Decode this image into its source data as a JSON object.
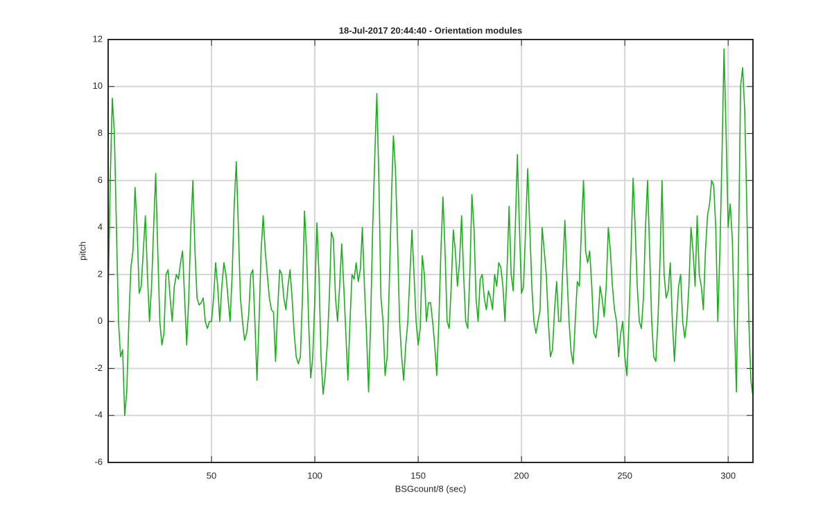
{
  "chart_data": {
    "type": "line",
    "title": "18-Jul-2017 20:44:40 - Orientation modules",
    "xlabel": "BSGcount/8 (sec)",
    "ylabel": "pitch",
    "xlim": [
      0,
      312
    ],
    "ylim": [
      -6,
      12
    ],
    "xticks": [
      50,
      100,
      150,
      200,
      250,
      300
    ],
    "yticks": [
      -6,
      -4,
      -2,
      0,
      2,
      4,
      6,
      8,
      10,
      12
    ],
    "grid": true,
    "x": [
      0,
      1,
      2,
      3,
      4,
      5,
      6,
      7,
      8,
      9,
      10,
      11,
      12,
      13,
      14,
      15,
      16,
      17,
      18,
      19,
      20,
      21,
      22,
      23,
      24,
      25,
      26,
      27,
      28,
      29,
      30,
      31,
      32,
      33,
      34,
      35,
      36,
      37,
      38,
      39,
      40,
      41,
      42,
      43,
      44,
      45,
      46,
      47,
      48,
      49,
      50,
      51,
      52,
      53,
      54,
      55,
      56,
      57,
      58,
      59,
      60,
      61,
      62,
      63,
      64,
      65,
      66,
      67,
      68,
      69,
      70,
      71,
      72,
      73,
      74,
      75,
      76,
      77,
      78,
      79,
      80,
      81,
      82,
      83,
      84,
      85,
      86,
      87,
      88,
      89,
      90,
      91,
      92,
      93,
      94,
      95,
      96,
      97,
      98,
      99,
      100,
      101,
      102,
      103,
      104,
      105,
      106,
      107,
      108,
      109,
      110,
      111,
      112,
      113,
      114,
      115,
      116,
      117,
      118,
      119,
      120,
      121,
      122,
      123,
      124,
      125,
      126,
      127,
      128,
      129,
      130,
      131,
      132,
      133,
      134,
      135,
      136,
      137,
      138,
      139,
      140,
      141,
      142,
      143,
      144,
      145,
      146,
      147,
      148,
      149,
      150,
      151,
      152,
      153,
      154,
      155,
      156,
      157,
      158,
      159,
      160,
      161,
      162,
      163,
      164,
      165,
      166,
      167,
      168,
      169,
      170,
      171,
      172,
      173,
      174,
      175,
      176,
      177,
      178,
      179,
      180,
      181,
      182,
      183,
      184,
      185,
      186,
      187,
      188,
      189,
      190,
      191,
      192,
      193,
      194,
      195,
      196,
      197,
      198,
      199,
      200,
      201,
      202,
      203,
      204,
      205,
      206,
      207,
      208,
      209,
      210,
      211,
      212,
      213,
      214,
      215,
      216,
      217,
      218,
      219,
      220,
      221,
      222,
      223,
      224,
      225,
      226,
      227,
      228,
      229,
      230,
      231,
      232,
      233,
      234,
      235,
      236,
      237,
      238,
      239,
      240,
      241,
      242,
      243,
      244,
      245,
      246,
      247,
      248,
      249,
      250,
      251,
      252,
      253,
      254,
      255,
      256,
      257,
      258,
      259,
      260,
      261,
      262,
      263,
      264,
      265,
      266,
      267,
      268,
      269,
      270,
      271,
      272,
      273,
      274,
      275,
      276,
      277,
      278,
      279,
      280,
      281,
      282,
      283,
      284,
      285,
      286,
      287,
      288,
      289,
      290,
      291,
      292,
      293,
      294,
      295,
      296,
      297,
      298,
      299,
      300,
      301,
      302,
      303,
      304,
      305,
      306,
      307,
      308,
      309,
      310,
      311,
      312
    ],
    "series": [
      {
        "color": "#1aaf1a",
        "values": [
          1,
          6,
          9.5,
          8,
          4,
          0,
          -1.5,
          -1.2,
          -4,
          -3,
          0,
          2.3,
          3,
          5.7,
          4,
          1.2,
          1.5,
          3,
          4.5,
          2,
          0,
          1.5,
          4,
          6.3,
          3,
          0,
          -1,
          -0.5,
          2,
          2.2,
          1,
          0,
          1.5,
          2,
          1.8,
          2.5,
          3,
          1,
          -1,
          1,
          4,
          6,
          3,
          1,
          0.7,
          0.8,
          1,
          0,
          -0.3,
          0,
          0,
          1,
          2.5,
          1.5,
          0,
          1.5,
          2.5,
          2,
          1,
          0,
          2,
          5,
          6.8,
          4,
          1,
          0,
          -0.8,
          -0.5,
          0.3,
          2,
          2.2,
          0,
          -2.5,
          0,
          3,
          4.5,
          3,
          2,
          1,
          0.5,
          0.4,
          -1.7,
          0.5,
          2.2,
          2,
          1,
          0.5,
          1.5,
          2.2,
          1,
          -0.5,
          -1.5,
          -1.8,
          -1.5,
          1,
          4.7,
          3,
          0,
          -2.4,
          -1.5,
          1,
          4.2,
          2,
          -1.5,
          -3.1,
          -2.3,
          -1,
          1,
          3.8,
          3.5,
          1,
          0,
          1.5,
          3.3,
          1.5,
          -0.5,
          -2.5,
          0,
          2,
          1.8,
          2.5,
          1.7,
          2.2,
          4,
          1.5,
          -0.5,
          -3,
          0,
          4,
          7,
          9.7,
          6,
          1,
          0,
          -2.3,
          -1.5,
          1.5,
          5,
          7.9,
          6.5,
          3.5,
          0,
          -1.5,
          -2.5,
          -1,
          0,
          2,
          3.9,
          2,
          0,
          -1,
          -0.3,
          2.8,
          2,
          0,
          0.8,
          0.8,
          0,
          -1,
          -2.3,
          0,
          3,
          5.3,
          3,
          0,
          -0.3,
          1.5,
          3.9,
          3,
          1.5,
          2.5,
          4.5,
          2,
          0,
          -0.3,
          2,
          5.4,
          4,
          1,
          0,
          1.8,
          2,
          1,
          0.5,
          1.3,
          1,
          0.5,
          2,
          1.5,
          2.5,
          2.3,
          1.5,
          0,
          2.2,
          4.9,
          2,
          1.3,
          4,
          7.1,
          4,
          1.2,
          1.5,
          4,
          6.5,
          4,
          1.5,
          0,
          -0.5,
          0,
          0.5,
          4,
          3,
          2,
          0,
          -1.5,
          -1.2,
          0.5,
          1.7,
          0,
          0,
          2.3,
          4.3,
          2,
          0,
          -1.3,
          -1.8,
          0,
          1.7,
          1.5,
          4,
          6,
          3,
          2.5,
          3,
          1.5,
          -0.5,
          -0.7,
          0,
          1.5,
          1,
          0.2,
          1.5,
          4,
          3,
          1.5,
          0.5,
          0,
          -1.5,
          -0.5,
          0,
          -1.5,
          -2.3,
          0,
          3,
          6.1,
          4,
          1.5,
          0,
          -0.3,
          1,
          4,
          6,
          3,
          0,
          -1.5,
          -1.7,
          0,
          2.5,
          6,
          2,
          1,
          1.3,
          2.5,
          0,
          -1.7,
          0,
          1.5,
          2,
          0,
          -0.7,
          0,
          1.5,
          4,
          3,
          1.5,
          4.5,
          2,
          1.5,
          0.5,
          3,
          4.5,
          5,
          6,
          5.8,
          4,
          0,
          3,
          7,
          11.6,
          8,
          4,
          5,
          3.5,
          0,
          -3,
          3,
          10,
          10.8,
          9,
          5,
          0,
          -2.5,
          -3.2
        ]
      }
    ]
  }
}
